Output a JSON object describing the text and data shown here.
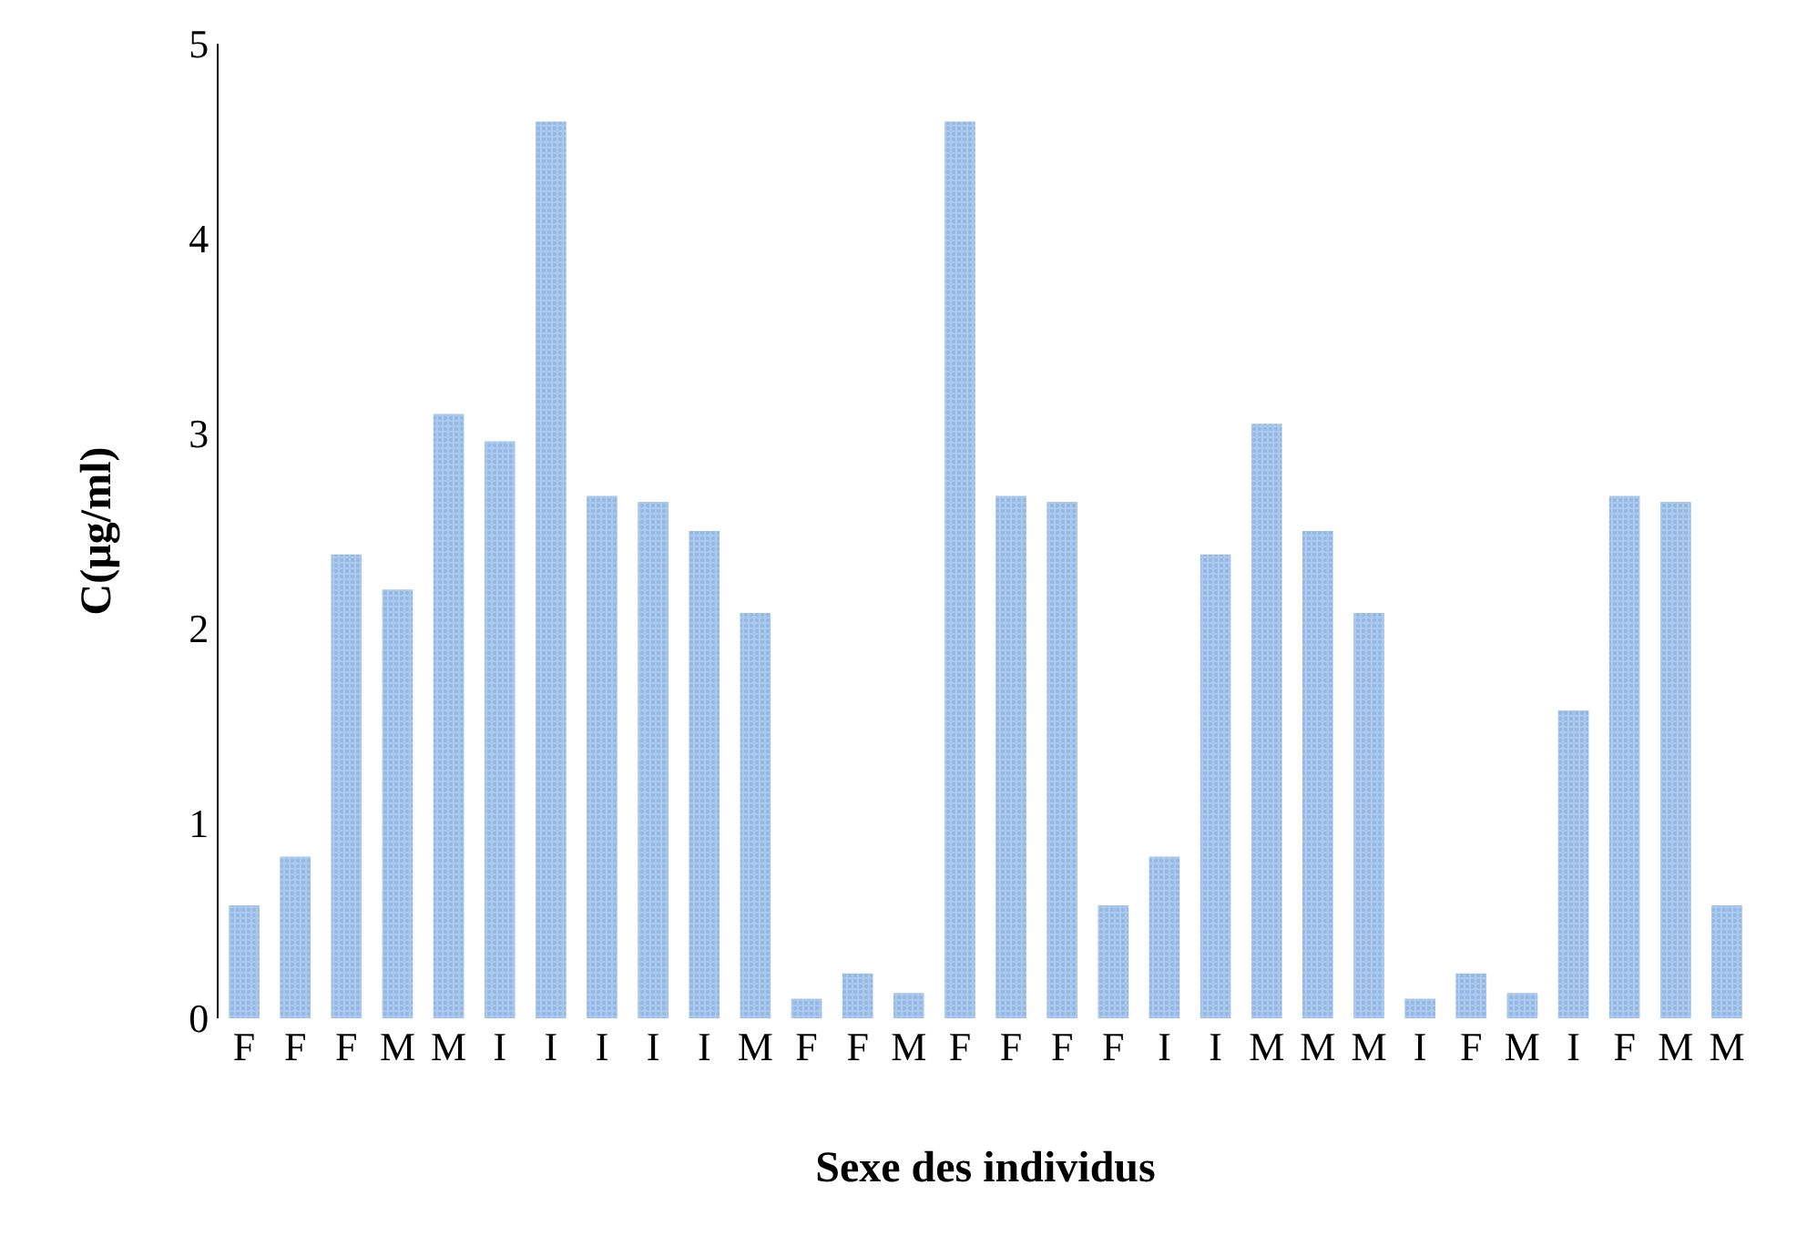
{
  "chart_data": {
    "type": "bar",
    "xlabel": "Sexe des individus",
    "ylabel": "C(µg/ml)",
    "categories": [
      "F",
      "F",
      "F",
      "M",
      "M",
      "I",
      "I",
      "I",
      "I",
      "I",
      "M",
      "F",
      "F",
      "M",
      "F",
      "F",
      "F",
      "F",
      "I",
      "I",
      "M",
      "M",
      "M",
      "I",
      "F",
      "M",
      "I",
      "F",
      "M",
      "M"
    ],
    "values": [
      0.58,
      0.83,
      2.38,
      2.2,
      3.1,
      2.96,
      4.6,
      2.68,
      2.65,
      2.5,
      2.08,
      0.1,
      0.23,
      0.13,
      4.6,
      2.68,
      2.65,
      0.58,
      0.83,
      2.38,
      3.05,
      2.5,
      2.08,
      0.1,
      0.23,
      0.13,
      1.58,
      2.68,
      2.65,
      0.58
    ],
    "color": "#a9c8ec",
    "ylim": [
      0,
      5
    ],
    "yticks": [
      0,
      1,
      2,
      3,
      4,
      5
    ],
    "legend": false
  }
}
